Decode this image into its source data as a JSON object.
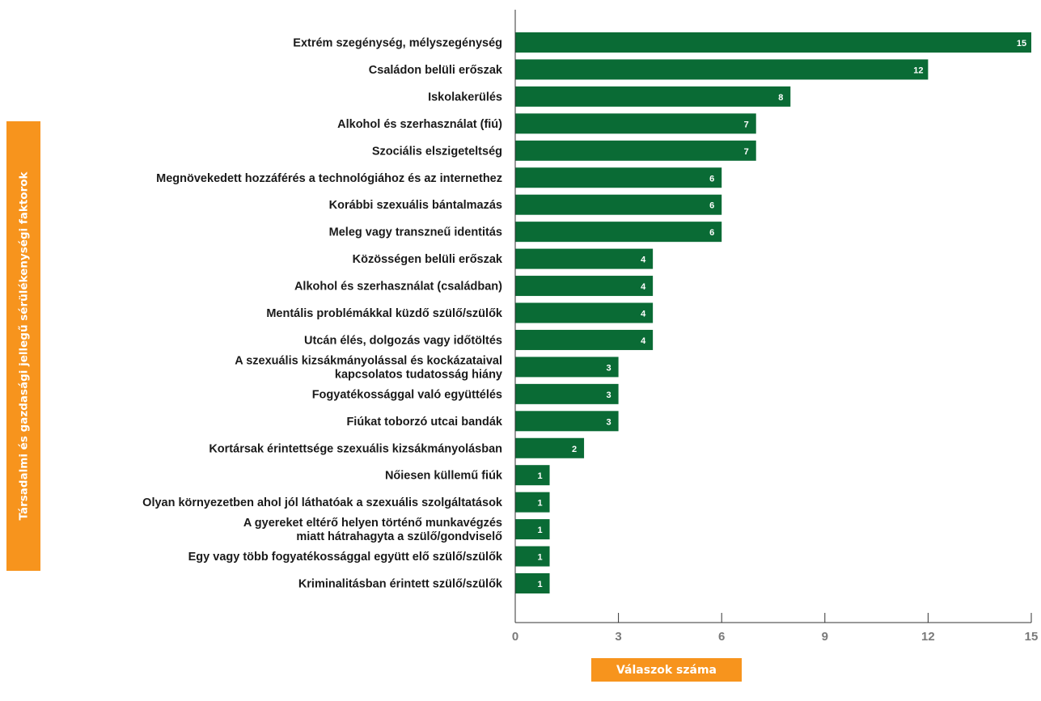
{
  "chart_data": {
    "type": "bar",
    "orientation": "horizontal",
    "categories": [
      "Extrém szegénység, mélyszegénység",
      "Családon belüli erőszak",
      "Iskolakerülés",
      "Alkohol és szerhasználat (fiú)",
      "Szociális elszigeteltség",
      "Megnövekedett hozzáférés a technológiához és az internethez",
      "Korábbi szexuális bántalmazás",
      "Meleg vagy transzneű identitás",
      "Közösségen belüli erőszak",
      "Alkohol és szerhasználat (családban)",
      "Mentális problémákkal küzdő szülő/szülők",
      "Utcán élés, dolgozás vagy időtöltés",
      "A szexuális kizsákmányolással és kockázataival kapcsolatos tudatosság hiány",
      "Fogyatékossággal való együttélés",
      "Fiúkat toborzó utcai bandák",
      "Kortársak érintettsége szexuális kizsákmányolásban",
      "Nőiesen küllemű fiúk",
      "Olyan környezetben ahol jól láthatóak a szexuális szolgáltatások",
      "A gyereket eltérő helyen történő munkavégzés miatt hátrahagyta a szülő/gondviselő",
      "Egy vagy több fogyatékossággal együtt elő szülő/szülők",
      "Kriminalitásban érintett szülő/szülők"
    ],
    "category_lines": [
      [
        "Extrém szegénység, mélyszegénység"
      ],
      [
        "Családon belüli erőszak"
      ],
      [
        "Iskolakerülés"
      ],
      [
        "Alkohol és szerhasználat (fiú)"
      ],
      [
        "Szociális elszigeteltség"
      ],
      [
        "Megnövekedett hozzáférés a technológiához és az internethez"
      ],
      [
        "Korábbi szexuális bántalmazás"
      ],
      [
        "Meleg vagy transzneű identitás"
      ],
      [
        "Közösségen belüli erőszak"
      ],
      [
        "Alkohol és szerhasználat (családban)"
      ],
      [
        "Mentális problémákkal küzdő szülő/szülők"
      ],
      [
        "Utcán élés, dolgozás vagy időtöltés"
      ],
      [
        "A szexuális kizsákmányolással és kockázataival",
        "kapcsolatos tudatosság hiány"
      ],
      [
        "Fogyatékossággal való együttélés"
      ],
      [
        "Fiúkat toborzó utcai bandák"
      ],
      [
        "Kortársak érintettsége szexuális kizsákmányolásban"
      ],
      [
        "Nőiesen küllemű fiúk"
      ],
      [
        "Olyan környezetben ahol jól láthatóak a szexuális szolgáltatások"
      ],
      [
        "A gyereket eltérő helyen történő munkavégzés",
        "miatt hátrahagyta a szülő/gondviselő"
      ],
      [
        "Egy vagy több fogyatékossággal együtt elő szülő/szülők"
      ],
      [
        "Kriminalitásban érintett szülő/szülők"
      ]
    ],
    "values": [
      15,
      12,
      8,
      7,
      7,
      6,
      6,
      6,
      4,
      4,
      4,
      4,
      3,
      3,
      3,
      2,
      1,
      1,
      1,
      1,
      1
    ],
    "xlim": [
      0,
      15
    ],
    "xticks": [
      0,
      3,
      6,
      9,
      12,
      15
    ],
    "xlabel": "Válaszok száma",
    "ylabel": "Társadalmi és gazdasági jellegű sérülékenységi faktorok",
    "bar_color": "#0a6b35",
    "label_box_color": "#f7941d",
    "grid": false
  }
}
